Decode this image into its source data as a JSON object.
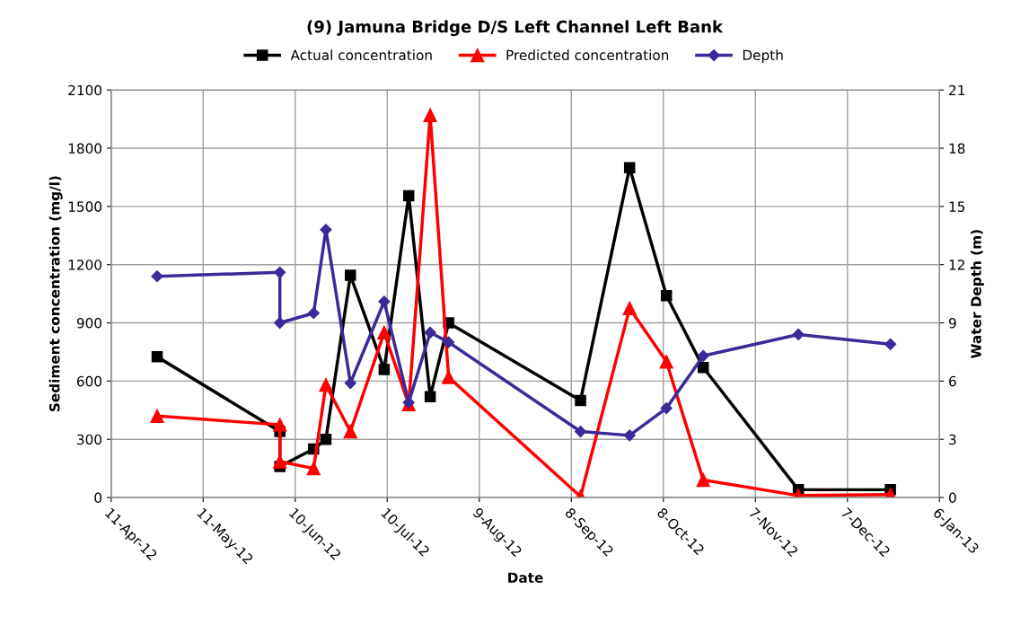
{
  "chart_data": {
    "type": "line",
    "title": "(9) Jamuna Bridge D/S Left Channel Left Bank",
    "xlabel": "Date",
    "ylabel": "Sediment concentration (mg/l)",
    "y2label": "Water Depth (m)",
    "x": [
      "2012-04-26",
      "2012-06-05",
      "2012-06-05",
      "2012-06-16",
      "2012-06-20",
      "2012-06-28",
      "2012-07-09",
      "2012-07-17",
      "2012-07-24",
      "2012-07-30",
      "2012-09-11",
      "2012-09-27",
      "2012-10-09",
      "2012-10-21",
      "2012-11-21",
      "2012-12-21"
    ],
    "series": [
      {
        "name": "Actual concentration",
        "color": "#000000",
        "marker": "square",
        "values": [
          725,
          340,
          160,
          250,
          300,
          1145,
          660,
          1555,
          520,
          900,
          500,
          1700,
          1040,
          670,
          40,
          40
        ]
      },
      {
        "name": "Predicted concentration",
        "color": "#ff0000",
        "marker": "triangle",
        "values": [
          420,
          375,
          185,
          150,
          580,
          340,
          850,
          480,
          1970,
          620,
          5,
          975,
          700,
          90,
          10,
          15
        ]
      },
      {
        "name": "Depth",
        "color": "#3a2a9a",
        "marker": "diamond",
        "axis": "y2",
        "values": [
          11.4,
          11.6,
          9.0,
          9.5,
          13.8,
          5.9,
          10.1,
          4.9,
          8.5,
          8.0,
          3.4,
          3.2,
          4.6,
          7.3,
          8.4,
          7.9
        ]
      }
    ],
    "xlim": [
      "2012-04-11",
      "2013-01-06"
    ],
    "xticks": [
      {
        "value": "2012-04-11",
        "label": "11-Apr-12"
      },
      {
        "value": "2012-05-11",
        "label": "11-May-12"
      },
      {
        "value": "2012-06-10",
        "label": "10-Jun-12"
      },
      {
        "value": "2012-07-10",
        "label": "10-Jul-12"
      },
      {
        "value": "2012-08-09",
        "label": "9-Aug-12"
      },
      {
        "value": "2012-09-08",
        "label": "8-Sep-12"
      },
      {
        "value": "2012-10-08",
        "label": "8-Oct-12"
      },
      {
        "value": "2012-11-07",
        "label": "7-Nov-12"
      },
      {
        "value": "2012-12-07",
        "label": "7-Dec-12"
      },
      {
        "value": "2013-01-06",
        "label": "6-Jan-13"
      }
    ],
    "ylim": [
      0,
      2100
    ],
    "yticks": [
      0,
      300,
      600,
      900,
      1200,
      1500,
      1800,
      2100
    ],
    "y2lim": [
      0,
      21
    ],
    "y2ticks": [
      0,
      3,
      6,
      9,
      12,
      15,
      18,
      21
    ],
    "grid": true,
    "legend": "top",
    "line_style": "solid"
  }
}
